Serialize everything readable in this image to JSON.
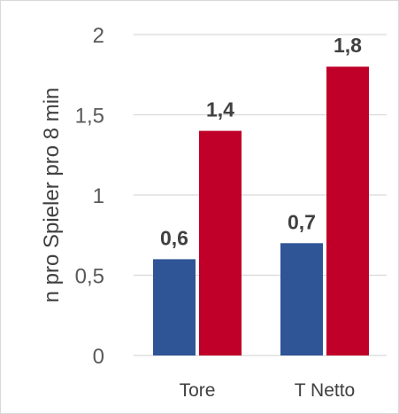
{
  "chart_data": {
    "type": "bar",
    "categories": [
      "Tore",
      "T Netto"
    ],
    "series": [
      {
        "values": [
          0.6,
          0.7
        ],
        "labels": [
          "0,6",
          "0,7"
        ],
        "color": "#2f5597"
      },
      {
        "values": [
          1.4,
          1.8
        ],
        "labels": [
          "1,4",
          "1,8"
        ],
        "color": "#c00029"
      }
    ],
    "ylabel": "n pro Spieler pro 8 min",
    "ylim": [
      0,
      2
    ],
    "yticks": [
      0,
      0.5,
      1,
      1.5,
      2
    ],
    "ytick_labels": [
      "0",
      "0,5",
      "1",
      "1,5",
      "2"
    ],
    "grid": true,
    "gridline_color": "#d9d9d9"
  }
}
